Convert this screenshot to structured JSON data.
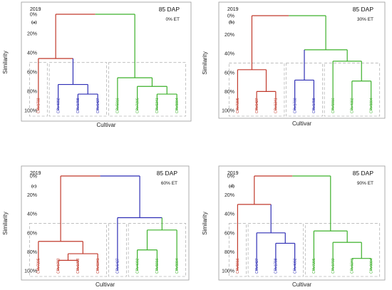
{
  "chart_data": [
    {
      "type": "dendrogram",
      "year": "2019",
      "letter": "(a)",
      "dap": "85 DAP",
      "et": "0% ET",
      "ylabel": "Similarity",
      "xlabel": "Cultivar",
      "yticks": [
        "0%",
        "20%",
        "40%",
        "60%",
        "80%",
        "100%"
      ],
      "ylim": [
        0,
        100
      ],
      "colors": {
        "red": "#c0392b",
        "blue": "#2f2fb5",
        "green": "#3cb02a",
        "root": "#111111"
      },
      "leaves": [
        {
          "label": "CRV1733",
          "color": "red"
        },
        {
          "label": "CRV4092",
          "color": "blue"
        },
        {
          "label": "CRV1798",
          "color": "blue"
        },
        {
          "label": "CRV6427",
          "color": "blue"
        },
        {
          "label": "CRV5916",
          "color": "green"
        },
        {
          "label": "CRV7205",
          "color": "green"
        },
        {
          "label": "CRV6341",
          "color": "green"
        },
        {
          "label": "CRV9804",
          "color": "green"
        }
      ],
      "merges": [
        {
          "a": 2,
          "b": 3,
          "height": 83,
          "color": "blue"
        },
        {
          "a": 1,
          "b": 8,
          "height": 73,
          "color": "blue"
        },
        {
          "a": 6,
          "b": 7,
          "height": 83,
          "color": "green"
        },
        {
          "a": 5,
          "b": 10,
          "height": 75,
          "color": "green"
        },
        {
          "a": 4,
          "b": 11,
          "height": 66,
          "color": "green"
        },
        {
          "a": 0,
          "b": 9,
          "height": 46,
          "color": "red"
        },
        {
          "a": 13,
          "b": 12,
          "height": 0,
          "color": "root",
          "split": true
        }
      ],
      "groups": [
        [
          0
        ],
        [
          1,
          3
        ],
        [
          4,
          7
        ]
      ]
    },
    {
      "type": "dendrogram",
      "year": "2019",
      "letter": "(b)",
      "dap": "85 DAP",
      "et": "30% ET",
      "ylabel": "Similarity",
      "xlabel": "Cultivar",
      "yticks": [
        "0%",
        "20%",
        "40%",
        "60%",
        "80%",
        "100%"
      ],
      "ylim": [
        0,
        100
      ],
      "colors": {
        "red": "#c0392b",
        "blue": "#2f2fb5",
        "green": "#3cb02a",
        "root": "#111111"
      },
      "leaves": [
        {
          "label": "CRV7205",
          "color": "red"
        },
        {
          "label": "CRV6427",
          "color": "red"
        },
        {
          "label": "CRV6341",
          "color": "red"
        },
        {
          "label": "CRV1733",
          "color": "blue"
        },
        {
          "label": "CRV1798",
          "color": "blue"
        },
        {
          "label": "CRV5916",
          "color": "green"
        },
        {
          "label": "CRV4092",
          "color": "green"
        },
        {
          "label": "CRV9804",
          "color": "green"
        }
      ],
      "merges": [
        {
          "a": 1,
          "b": 2,
          "height": 80,
          "color": "red"
        },
        {
          "a": 0,
          "b": 8,
          "height": 57,
          "color": "red"
        },
        {
          "a": 3,
          "b": 4,
          "height": 68,
          "color": "blue"
        },
        {
          "a": 6,
          "b": 7,
          "height": 69,
          "color": "green"
        },
        {
          "a": 5,
          "b": 11,
          "height": 48,
          "color": "green"
        },
        {
          "a": 10,
          "b": 12,
          "height": 36,
          "color": "green"
        },
        {
          "a": 9,
          "b": 13,
          "height": 0,
          "color": "root",
          "split": true
        }
      ],
      "groups": [
        [
          0,
          2
        ],
        [
          3,
          4
        ],
        [
          5,
          7
        ]
      ]
    },
    {
      "type": "dendrogram",
      "year": "2019",
      "letter": "(c)",
      "dap": "85 DAP",
      "et": "60% ET",
      "ylabel": "Similarity",
      "xlabel": "Cultivar",
      "yticks": [
        "0%",
        "20%",
        "40%",
        "60%",
        "80%",
        "100%"
      ],
      "ylim": [
        0,
        100
      ],
      "colors": {
        "red": "#c0392b",
        "blue": "#2f2fb5",
        "green": "#3cb02a",
        "root": "#111111"
      },
      "leaves": [
        {
          "label": "CRV7205",
          "color": "red"
        },
        {
          "label": "CRV1733",
          "color": "red"
        },
        {
          "label": "CRV1798",
          "color": "red"
        },
        {
          "label": "CRV6341",
          "color": "red"
        },
        {
          "label": "CRV6427",
          "color": "blue"
        },
        {
          "label": "CRV4092",
          "color": "green"
        },
        {
          "label": "CRV5916",
          "color": "green"
        },
        {
          "label": "CRV9804",
          "color": "green"
        }
      ],
      "merges": [
        {
          "a": 1,
          "b": 2,
          "height": 89,
          "color": "red"
        },
        {
          "a": 8,
          "b": 3,
          "height": 82,
          "color": "red"
        },
        {
          "a": 0,
          "b": 9,
          "height": 69,
          "color": "red"
        },
        {
          "a": 5,
          "b": 6,
          "height": 78,
          "color": "green"
        },
        {
          "a": 11,
          "b": 7,
          "height": 57,
          "color": "green"
        },
        {
          "a": 4,
          "b": 12,
          "height": 44,
          "color": "blue"
        },
        {
          "a": 10,
          "b": 13,
          "height": 0,
          "color": "root",
          "split": true
        }
      ],
      "groups": [
        [
          0,
          3
        ],
        [
          4,
          4
        ],
        [
          5,
          7
        ]
      ]
    },
    {
      "type": "dendrogram",
      "year": "2019",
      "letter": "(d)",
      "dap": "85 DAP",
      "et": "90% ET",
      "ylabel": "Similarity",
      "xlabel": "Cultivar",
      "yticks": [
        "0%",
        "20%",
        "40%",
        "60%",
        "80%",
        "100%"
      ],
      "ylim": [
        0,
        100
      ],
      "colors": {
        "red": "#c0392b",
        "blue": "#2f2fb5",
        "green": "#3cb02a",
        "root": "#111111"
      },
      "leaves": [
        {
          "label": "CRV5916",
          "color": "red"
        },
        {
          "label": "CRV6427",
          "color": "blue"
        },
        {
          "label": "CRV1798",
          "color": "blue"
        },
        {
          "label": "CRV4092",
          "color": "blue"
        },
        {
          "label": "CRV7205",
          "color": "green"
        },
        {
          "label": "CRV1733",
          "color": "green"
        },
        {
          "label": "CRV6341",
          "color": "green"
        },
        {
          "label": "CRV9804",
          "color": "green"
        }
      ],
      "merges": [
        {
          "a": 2,
          "b": 3,
          "height": 71,
          "color": "blue"
        },
        {
          "a": 1,
          "b": 8,
          "height": 60,
          "color": "blue"
        },
        {
          "a": 6,
          "b": 7,
          "height": 87,
          "color": "green"
        },
        {
          "a": 5,
          "b": 10,
          "height": 70,
          "color": "green"
        },
        {
          "a": 4,
          "b": 11,
          "height": 58,
          "color": "green"
        },
        {
          "a": 0,
          "b": 9,
          "height": 30,
          "color": "red"
        },
        {
          "a": 13,
          "b": 12,
          "height": 0,
          "color": "root",
          "split": true
        }
      ],
      "groups": [
        [
          0
        ],
        [
          1,
          3
        ],
        [
          4,
          7
        ]
      ]
    }
  ]
}
